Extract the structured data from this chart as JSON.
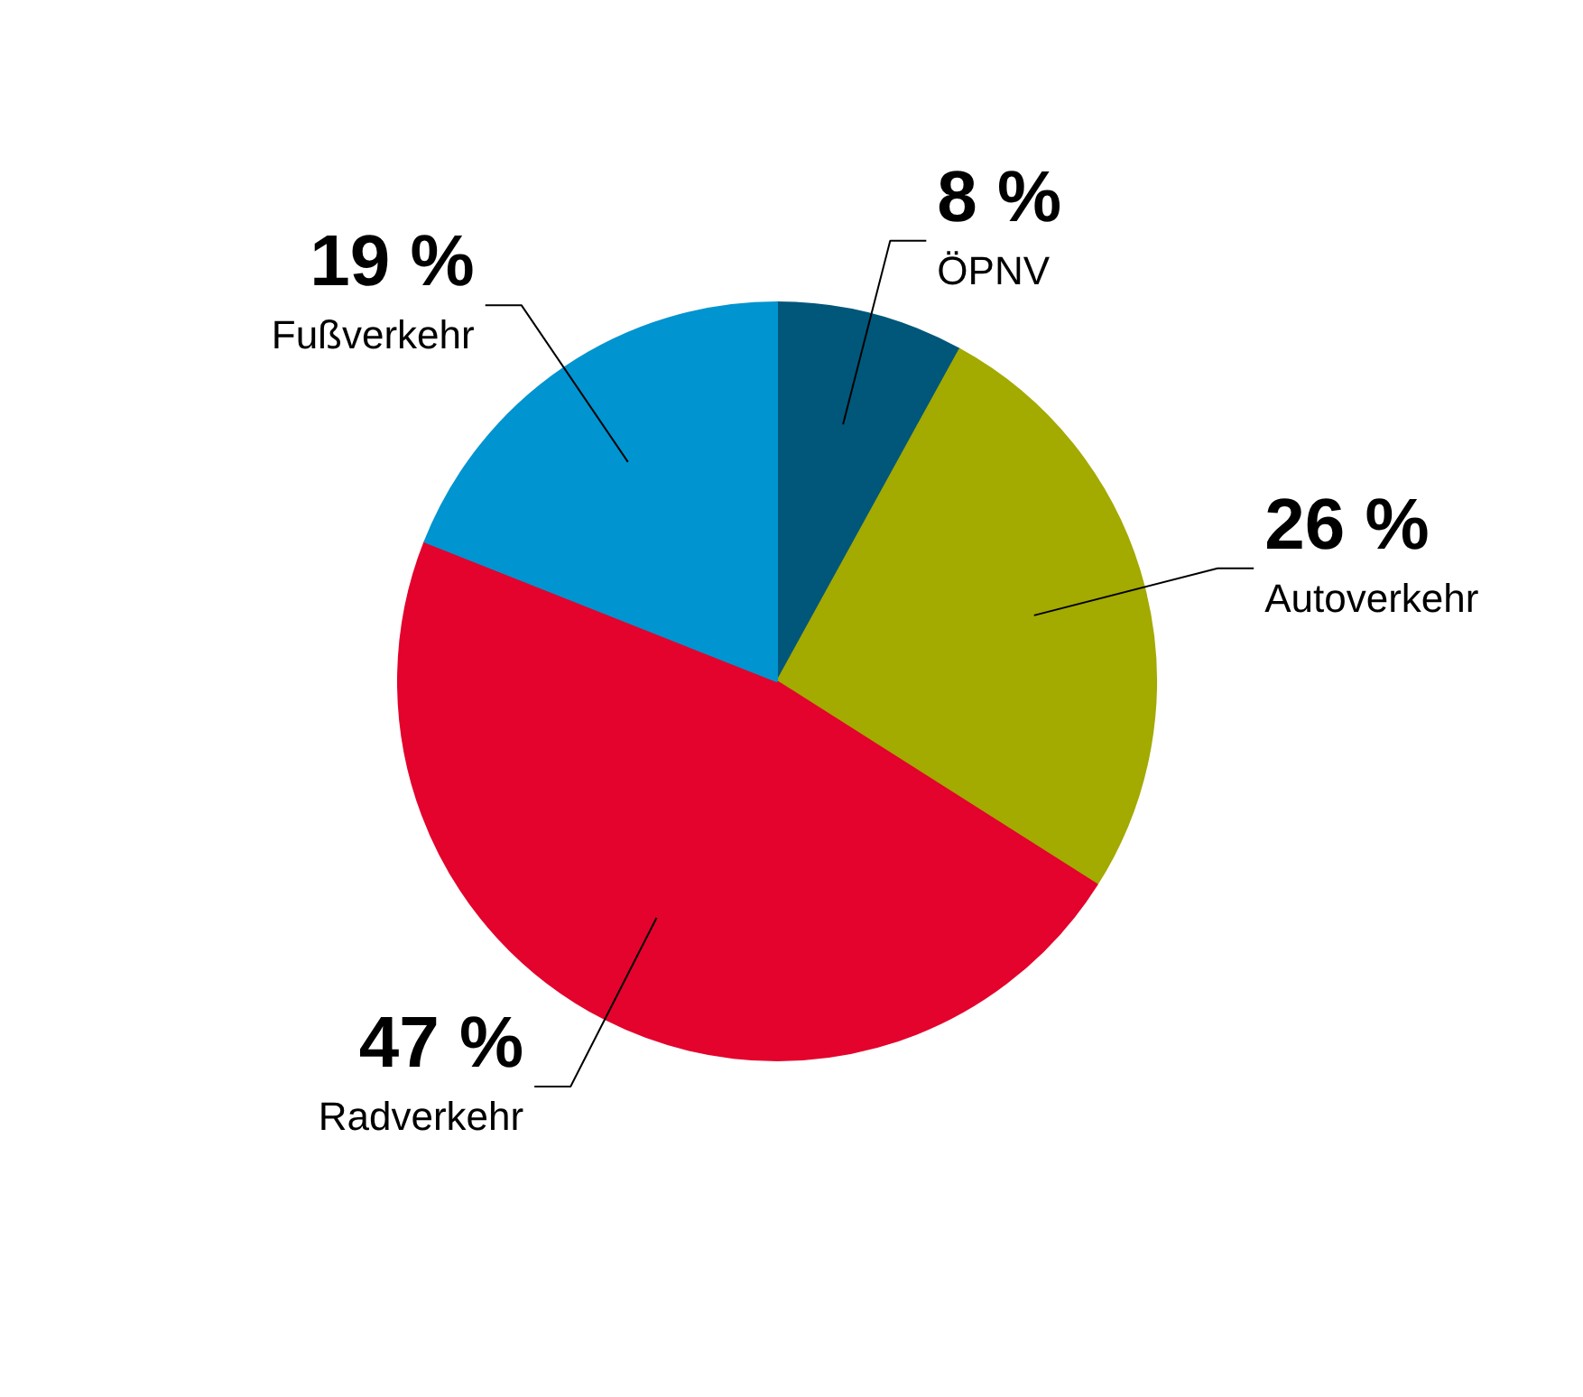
{
  "chart_data": {
    "type": "pie",
    "categories": [
      "ÖPNV",
      "Autoverkehr",
      "Radverkehr",
      "Fußverkehr"
    ],
    "values": [
      8,
      26,
      47,
      19
    ],
    "colors": [
      "#00577a",
      "#a3aa00",
      "#e3032d",
      "#0094d0"
    ],
    "value_labels": [
      "8 %",
      "26 %",
      "47 %",
      "19 %"
    ]
  }
}
